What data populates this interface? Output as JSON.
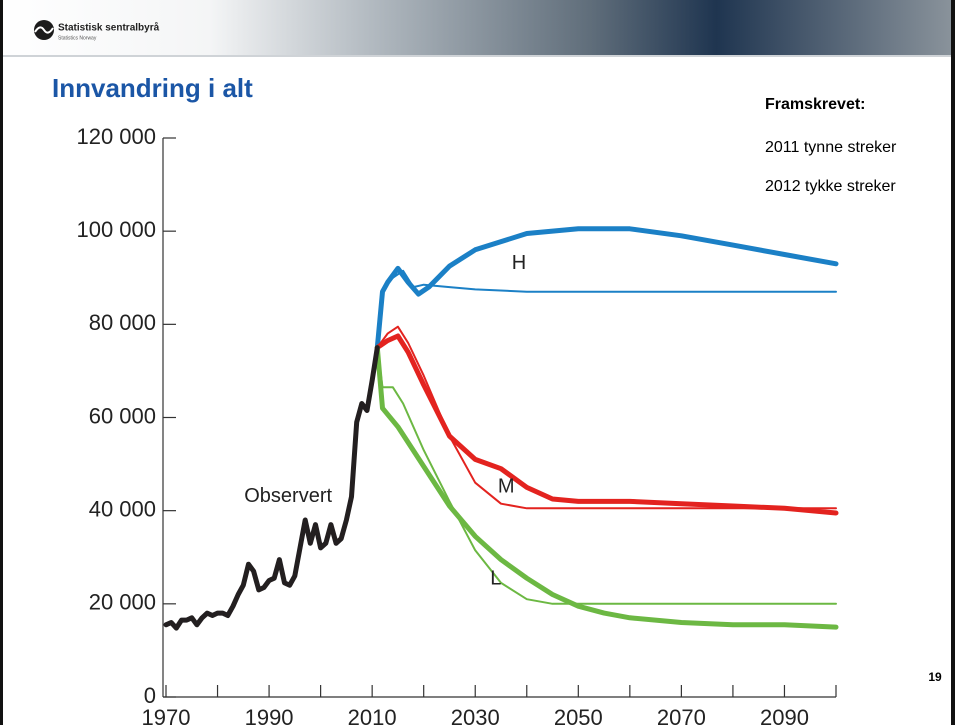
{
  "header": {
    "logo_text": "Statistisk sentralbyrå",
    "logo_subtext": "Statistics Norway"
  },
  "title": "Innvandring i alt",
  "note": {
    "heading": "Framskrevet:",
    "lines": [
      "2011 tynne streker",
      "2012 tykke streker"
    ]
  },
  "page_number": "19",
  "chart_data": {
    "type": "line",
    "xlim": [
      1970,
      2100
    ],
    "ylim": [
      0,
      120000
    ],
    "xticks": [
      1970,
      1990,
      2010,
      2030,
      2050,
      2070,
      2090
    ],
    "xminorticks": [
      1980,
      2000,
      2020,
      2040,
      2060,
      2080,
      2100
    ],
    "yticks": [
      0,
      {
        "value": 20000,
        "label": "20 000"
      },
      {
        "value": 40000,
        "label": "40 000"
      },
      {
        "value": 60000,
        "label": "60 000"
      },
      {
        "value": 80000,
        "label": "80 000"
      },
      {
        "value": 100000,
        "label": "100 000"
      },
      {
        "value": 120000,
        "label": "120 000"
      }
    ],
    "series": [
      {
        "color": "#1b80c6",
        "width": "thin",
        "x": [
          2011,
          2012,
          2014,
          2016,
          2018,
          2020,
          2025,
          2030,
          2040,
          2100
        ],
        "values": [
          75000,
          87500,
          90000,
          91500,
          88000,
          88500,
          88000,
          87500,
          87000,
          87000
        ]
      },
      {
        "color": "#1b80c6",
        "width": "thick",
        "x": [
          2011,
          2012,
          2013,
          2015,
          2017,
          2019,
          2021,
          2025,
          2030,
          2040,
          2050,
          2060,
          2070,
          2080,
          2090,
          2100
        ],
        "values": [
          75000,
          87000,
          89000,
          92000,
          89000,
          86500,
          88000,
          92500,
          96000,
          99500,
          100500,
          100500,
          99000,
          97000,
          95000,
          93000
        ]
      },
      {
        "color": "#e3231f",
        "width": "thin",
        "x": [
          2011,
          2013,
          2015,
          2017,
          2020,
          2025,
          2030,
          2035,
          2040,
          2100
        ],
        "values": [
          75000,
          78000,
          79500,
          76000,
          69000,
          56000,
          46000,
          41500,
          40500,
          40500
        ]
      },
      {
        "color": "#e3231f",
        "width": "thick",
        "x": [
          2011,
          2013,
          2015,
          2017,
          2020,
          2025,
          2030,
          2035,
          2040,
          2045,
          2050,
          2060,
          2070,
          2080,
          2090,
          2100
        ],
        "values": [
          75000,
          76500,
          77500,
          74000,
          67000,
          56000,
          51000,
          49000,
          45000,
          42500,
          42000,
          42000,
          41500,
          41000,
          40500,
          39500
        ]
      },
      {
        "color": "#6cb843",
        "width": "thin",
        "x": [
          2011,
          2012,
          2014,
          2016,
          2020,
          2025,
          2030,
          2035,
          2040,
          2045,
          2100
        ],
        "values": [
          75000,
          66500,
          66500,
          63000,
          53000,
          42000,
          31500,
          24500,
          21000,
          20000,
          20000
        ]
      },
      {
        "color": "#6cb843",
        "width": "thick",
        "x": [
          2011,
          2012,
          2015,
          2020,
          2025,
          2030,
          2035,
          2040,
          2045,
          2050,
          2055,
          2060,
          2070,
          2080,
          2090,
          2100
        ],
        "values": [
          75000,
          62000,
          58000,
          49500,
          41000,
          34500,
          29500,
          25500,
          22000,
          19500,
          18000,
          17000,
          16000,
          15500,
          15500,
          15000
        ]
      },
      {
        "color": "#231f20",
        "width": "thick",
        "x": [
          1970,
          1971,
          1972,
          1973,
          1974,
          1975,
          1976,
          1977,
          1978,
          1979,
          1980,
          1981,
          1982,
          1983,
          1984,
          1985,
          1986,
          1987,
          1988,
          1989,
          1990,
          1991,
          1992,
          1993,
          1994,
          1995,
          1996,
          1997,
          1998,
          1999,
          2000,
          2001,
          2002,
          2003,
          2004,
          2005,
          2006,
          2007,
          2008,
          2009,
          2010,
          2011
        ],
        "values": [
          15500,
          16000,
          14800,
          16500,
          16500,
          17000,
          15500,
          17000,
          18000,
          17500,
          18000,
          18000,
          17500,
          19500,
          22000,
          24000,
          28500,
          27000,
          23000,
          23500,
          25000,
          25500,
          29500,
          24500,
          24000,
          26000,
          32000,
          38000,
          33000,
          37000,
          32000,
          33000,
          37000,
          33000,
          34000,
          38000,
          43000,
          59000,
          63000,
          61500,
          68000,
          75000
        ]
      }
    ],
    "annotations": [
      {
        "text": "Observert",
        "x": 1993.7,
        "y": 43000
      },
      {
        "text": "H",
        "x": 2038.5,
        "y": 93000
      },
      {
        "text": "M",
        "x": 2036,
        "y": 45000
      },
      {
        "text": "L",
        "x": 2034,
        "y": 25300
      }
    ]
  }
}
